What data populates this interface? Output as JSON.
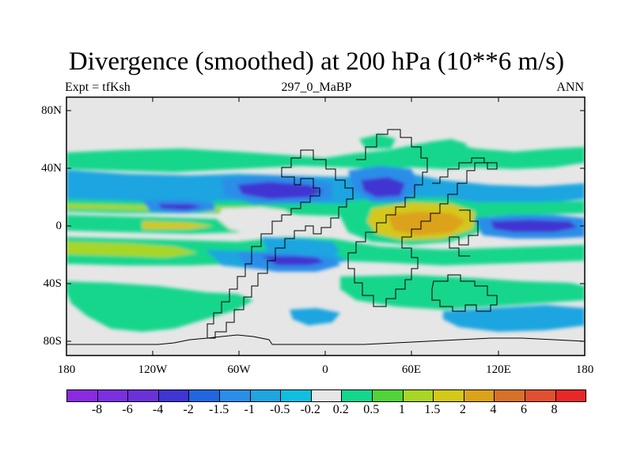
{
  "title": "Divergence (smoothed) at 200 hPa (10**6 m/s)",
  "subtitle_left": "Expt = tfKsh",
  "subtitle_center": "297_0_MaBP",
  "subtitle_right": "ANN",
  "lat_ticks": [
    "80N",
    "40N",
    "0",
    "40S",
    "80S"
  ],
  "lon_ticks": [
    "180",
    "120W",
    "60W",
    "0",
    "60E",
    "120E",
    "180"
  ],
  "colorbar": {
    "labels": [
      "-8",
      "-6",
      "-4",
      "-2",
      "-1.5",
      "-1",
      "-0.5",
      "-0.2",
      "0.2",
      "0.5",
      "1",
      "1.5",
      "2",
      "4",
      "6",
      "8"
    ],
    "colors": [
      "#8a2be2",
      "#7b30df",
      "#6a32d6",
      "#3f35d2",
      "#2166e0",
      "#2a8ee8",
      "#1fa5e0",
      "#10bfe0",
      "#e6e6e6",
      "#14d68c",
      "#52d33a",
      "#a8d626",
      "#d4c81a",
      "#dca21a",
      "#d8702a",
      "#e05030",
      "#e82828"
    ]
  },
  "colors": {
    "background_field": "#e6e6e6",
    "coastline": "#000000",
    "frame": "#000000"
  }
}
